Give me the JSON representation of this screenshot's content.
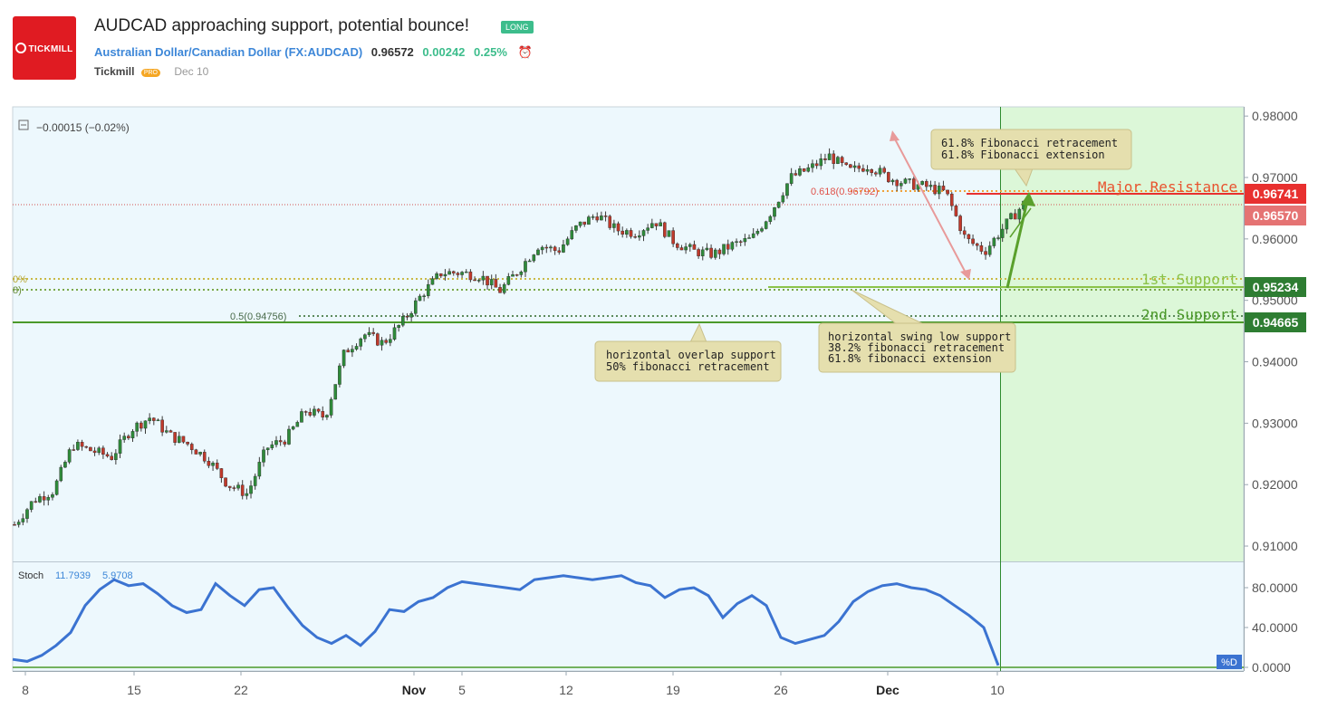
{
  "header": {
    "logo_text": "TICKMILL",
    "title": "AUDCAD approaching support, potential bounce!",
    "badge": "LONG",
    "symbol_name": "Australian Dollar/Canadian Dollar",
    "symbol_code": "(FX:AUDCAD)",
    "price": "0.96572",
    "change": "0.00242",
    "change_pct": "0.25%",
    "author": "Tickmill",
    "author_badge": "PRO",
    "date": "Dec 10"
  },
  "chart_data": [
    {
      "type": "candlestick",
      "pane": "price",
      "indicator_readout": "−0.00015 (−0.02%)",
      "y_ticks": [
        "0.98000",
        "0.97000",
        "0.96000",
        "0.95000",
        "0.94000",
        "0.93000",
        "0.92000",
        "0.91000"
      ],
      "ylim": [
        0.9075,
        0.9815
      ],
      "x_ticks": [
        "8",
        "15",
        "22",
        "Nov",
        "5",
        "12",
        "19",
        "26",
        "Dec",
        "10"
      ],
      "price_labels": [
        {
          "value": "0.96741",
          "color": "#e8302f"
        },
        {
          "value": "0.96570",
          "color": "#e57373"
        },
        {
          "value": "0.95234",
          "color": "#2e7d32"
        },
        {
          "value": "0.94665",
          "color": "#2e7d32"
        }
      ],
      "levels": [
        {
          "name": "Major Resistance",
          "value": 0.96741,
          "color": "#e8532f"
        },
        {
          "name": "1st Support",
          "value": 0.95234,
          "color": "#8bc34a"
        },
        {
          "name": "2nd Support",
          "value": 0.94665,
          "color": "#4c9a2a"
        }
      ],
      "fib_labels": {
        "top": "0.618(0.96792)",
        "mid_left_a": "0%",
        "mid_left_b": "8)",
        "half": "0.5(0.94756)"
      },
      "annotations": [
        {
          "lines": [
            "61.8% Fibonacci retracement",
            "61.8% Fibonacci extension"
          ]
        },
        {
          "lines": [
            "horizontal overlap support",
            "50% fibonacci retracement"
          ]
        },
        {
          "lines": [
            "horizontal swing low support",
            "38.2% fibonacci retracement",
            "61.8% fibonacci extension"
          ]
        }
      ],
      "close_path": [
        [
          "Oct 8",
          0.9135
        ],
        [
          "Oct 10",
          0.9175
        ],
        [
          "Oct 12",
          0.919
        ],
        [
          "Oct 15",
          0.9265
        ],
        [
          "Oct 17",
          0.9255
        ],
        [
          "Oct 19",
          0.9245
        ],
        [
          "Oct 20",
          0.929
        ],
        [
          "Oct 22",
          0.931
        ],
        [
          "Oct 23",
          0.928
        ],
        [
          "Oct 24",
          0.9265
        ],
        [
          "Oct 25",
          0.924
        ],
        [
          "Oct 26",
          0.92
        ],
        [
          "Oct 27",
          0.9185
        ],
        [
          "Oct 28",
          0.926
        ],
        [
          "Oct 29",
          0.9275
        ],
        [
          "Oct 30",
          0.932
        ],
        [
          "Oct 31",
          0.931
        ],
        [
          "Nov 1",
          0.9415
        ],
        [
          "Nov 2",
          0.9445
        ],
        [
          "Nov 3",
          0.943
        ],
        [
          "Nov 5",
          0.9465
        ],
        [
          "Nov 6",
          0.951
        ],
        [
          "Nov 7",
          0.9545
        ],
        [
          "Nov 8",
          0.9545
        ],
        [
          "Nov 10",
          0.954
        ],
        [
          "Nov 12",
          0.9515
        ],
        [
          "Nov 14",
          0.955
        ],
        [
          "Nov 15",
          0.959
        ],
        [
          "Nov 16",
          0.958
        ],
        [
          "Nov 18",
          0.962
        ],
        [
          "Nov 19",
          0.964
        ],
        [
          "Nov 20",
          0.9615
        ],
        [
          "Nov 21",
          0.961
        ],
        [
          "Nov 22",
          0.963
        ],
        [
          "Nov 23",
          0.9595
        ],
        [
          "Nov 24",
          0.958
        ],
        [
          "Nov 25",
          0.9575
        ],
        [
          "Nov 26",
          0.959
        ],
        [
          "Nov 27",
          0.96
        ],
        [
          "Nov 28",
          0.9645
        ],
        [
          "Nov 29",
          0.97
        ],
        [
          "Nov 30",
          0.9715
        ],
        [
          "Dec 1",
          0.9735
        ],
        [
          "Dec 2",
          0.971
        ],
        [
          "Dec 3",
          0.972
        ],
        [
          "Dec 4",
          0.97
        ],
        [
          "Dec 5",
          0.969
        ],
        [
          "Dec 6",
          0.9685
        ],
        [
          "Dec 7",
          0.9675
        ],
        [
          "Dec 8",
          0.96
        ],
        [
          "Dec 9",
          0.958
        ],
        [
          "Dec 10",
          0.962
        ],
        [
          "Dec 11",
          0.9657
        ]
      ]
    },
    {
      "type": "line",
      "pane": "indicator",
      "name": "Stoch",
      "k_value": "11.7939",
      "d_value": "5.9708",
      "y_ticks": [
        "80.0000",
        "40.0000",
        "0.0000"
      ],
      "ylim": [
        0,
        100
      ],
      "corner_label": "%D",
      "values": [
        8,
        6,
        12,
        22,
        35,
        62,
        78,
        88,
        82,
        84,
        74,
        62,
        55,
        58,
        84,
        72,
        62,
        78,
        80,
        60,
        42,
        30,
        24,
        32,
        22,
        36,
        58,
        56,
        66,
        70,
        80,
        86,
        84,
        82,
        80,
        78,
        88,
        90,
        92,
        90,
        88,
        90,
        92,
        85,
        82,
        70,
        78,
        80,
        72,
        50,
        64,
        72,
        62,
        30,
        24,
        28,
        32,
        46,
        66,
        76,
        82,
        84,
        80,
        78,
        72,
        62,
        52,
        40,
        2
      ]
    }
  ]
}
